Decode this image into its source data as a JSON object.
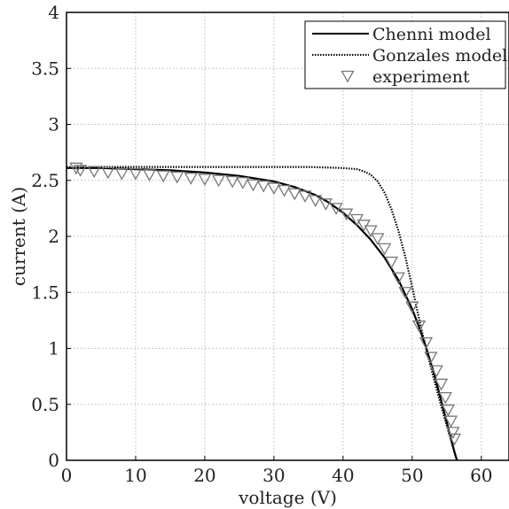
{
  "chart_data": {
    "type": "line",
    "xlabel": "voltage (V)",
    "ylabel": "current (A)",
    "xlim": [
      0,
      64
    ],
    "ylim": [
      0,
      4
    ],
    "xticks": [
      0,
      10,
      20,
      30,
      40,
      50,
      60
    ],
    "yticks": [
      0,
      0.5,
      1,
      1.5,
      2,
      2.5,
      3,
      3.5,
      4
    ],
    "xtick_labels": [
      "0",
      "10",
      "20",
      "30",
      "40",
      "50",
      "60"
    ],
    "ytick_labels": [
      "0",
      "0.5",
      "1",
      "1.5",
      "2",
      "2.5",
      "3",
      "3.5",
      "4"
    ],
    "grid": true,
    "legend_position": "top-right",
    "series": [
      {
        "name": "Chenni model",
        "style": "solid",
        "color": "#000000",
        "x": [
          0,
          5,
          10,
          15,
          20,
          25,
          30,
          33,
          36,
          38,
          40,
          42,
          44,
          46,
          48,
          50,
          51,
          52,
          53,
          54,
          55,
          55.5,
          56,
          56.3,
          56.5
        ],
        "y": [
          2.61,
          2.61,
          2.6,
          2.59,
          2.57,
          2.54,
          2.49,
          2.44,
          2.37,
          2.3,
          2.21,
          2.1,
          1.97,
          1.81,
          1.61,
          1.35,
          1.19,
          1.01,
          0.81,
          0.58,
          0.34,
          0.22,
          0.1,
          0.03,
          0.0
        ]
      },
      {
        "name": "Gonzales model",
        "style": "dotted",
        "color": "#000000",
        "x": [
          0,
          10,
          20,
          30,
          35,
          40,
          42,
          43,
          44,
          45,
          46,
          47,
          48,
          49,
          50,
          51,
          52,
          53,
          54,
          55,
          56,
          56.5
        ],
        "y": [
          2.62,
          2.62,
          2.62,
          2.62,
          2.62,
          2.61,
          2.6,
          2.58,
          2.55,
          2.49,
          2.39,
          2.24,
          2.05,
          1.82,
          1.55,
          1.26,
          1.0,
          0.76,
          0.53,
          0.31,
          0.1,
          0.0
        ]
      },
      {
        "name": "experiment",
        "style": "markers",
        "marker": "triangle-down",
        "color": "#777777",
        "x": [
          1.4,
          2.0,
          4.0,
          6.0,
          8.0,
          10.0,
          12.0,
          14.0,
          16.0,
          18.0,
          20.0,
          22.0,
          24.0,
          25.5,
          27.0,
          28.5,
          30.0,
          31.5,
          33.0,
          34.5,
          36.0,
          37.5,
          39.0,
          40.5,
          42.0,
          43.0,
          44.0,
          45.0,
          46.0,
          47.0,
          48.0,
          49.0,
          50.0,
          51.0,
          52.0,
          52.7,
          53.5,
          54.2,
          54.8,
          55.2,
          55.6,
          55.9,
          56.1
        ],
        "y": [
          2.61,
          2.59,
          2.58,
          2.57,
          2.56,
          2.56,
          2.55,
          2.54,
          2.53,
          2.52,
          2.51,
          2.5,
          2.49,
          2.48,
          2.46,
          2.45,
          2.43,
          2.41,
          2.38,
          2.36,
          2.32,
          2.29,
          2.25,
          2.2,
          2.15,
          2.1,
          2.05,
          1.98,
          1.89,
          1.77,
          1.63,
          1.5,
          1.37,
          1.2,
          1.05,
          0.92,
          0.8,
          0.68,
          0.56,
          0.45,
          0.35,
          0.25,
          0.19
        ]
      }
    ]
  }
}
